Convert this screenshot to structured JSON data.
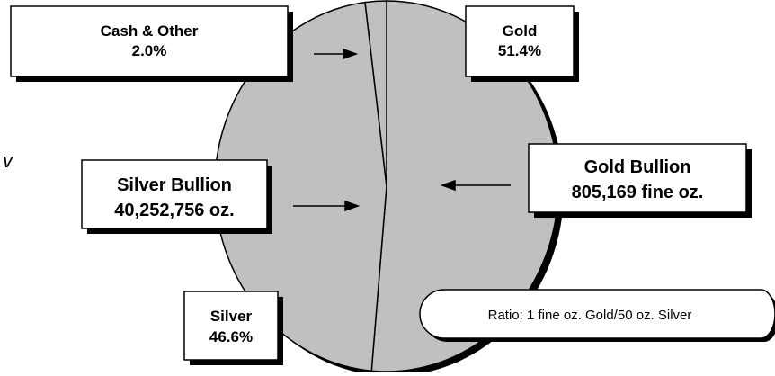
{
  "chart_data": {
    "type": "pie",
    "title": "",
    "slices": [
      {
        "label": "Gold",
        "value": 51.4
      },
      {
        "label": "Silver",
        "value": 46.6
      },
      {
        "label": "Cash & Other",
        "value": 2.0
      }
    ],
    "value_unit": "%"
  },
  "labels": {
    "cash": {
      "line1": "Cash & Other",
      "line2": "2.0%"
    },
    "gold": {
      "line1": "Gold",
      "line2": "51.4%"
    },
    "gold_bullion": {
      "line1": "Gold Bullion",
      "line2": "805,169 fine oz."
    },
    "silver_bullion": {
      "line1": "Silver Bullion",
      "line2": "40,252,756 oz."
    },
    "silver": {
      "line1": "Silver",
      "line2": "46.6%"
    },
    "ratio": "Ratio: 1 fine oz. Gold/50 oz. Silver",
    "edge_mark": "v"
  },
  "colors": {
    "pie_fill": "#c0c0c0",
    "pie_stroke": "#000000",
    "box_fill": "#ffffff",
    "shadow": "#000000"
  }
}
